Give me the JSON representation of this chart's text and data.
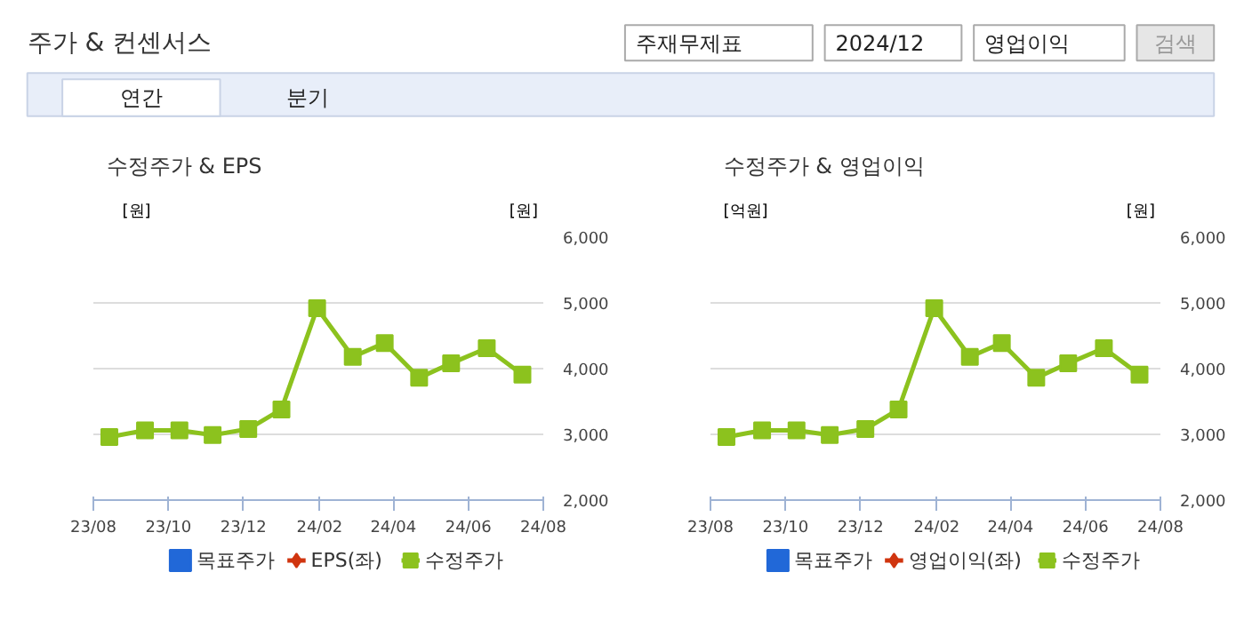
{
  "chart_data": [
    {
      "type": "other",
      "title": "주가 & 컨센서스",
      "annotations": [
        "주재무제표",
        "2024/12",
        "영업이익",
        "검색",
        "연간",
        "분기"
      ]
    },
    {
      "type": "line",
      "title": "수정주가 & EPS",
      "ylabel": "[원]",
      "annotations": [
        "[원]"
      ],
      "x": [
        "2023-08-14",
        "2023-09-12",
        "2023-10-10",
        "2023-11-06",
        "2023-12-05",
        "2024-01-01",
        "2024-01-30",
        "2024-02-28",
        "2024-03-25",
        "2024-04-22",
        "2024-05-18",
        "2024-06-16",
        "2024-07-15"
      ],
      "xlim": [
        "2023-08",
        "2024-08"
      ],
      "xticks": [
        {
          "value": "2023-08",
          "label": "23/08"
        },
        {
          "value": "2023-10",
          "label": "23/10"
        },
        {
          "value": "2023-12",
          "label": "23/12"
        },
        {
          "value": "2024-02",
          "label": "24/02"
        },
        {
          "value": "2024-04",
          "label": "24/04"
        },
        {
          "value": "2024-06",
          "label": "24/06"
        },
        {
          "value": "2024-08",
          "label": "24/08"
        }
      ],
      "ylim": [
        2000,
        6000
      ],
      "yticks": [
        {
          "value": 2000,
          "label": "2,000"
        },
        {
          "value": 3000,
          "label": "3,000"
        },
        {
          "value": 4000,
          "label": "4,000"
        },
        {
          "value": 5000,
          "label": "5,000"
        },
        {
          "value": 6000,
          "label": "6,000"
        }
      ],
      "grid": "y",
      "legend": "bottom",
      "series": [
        {
          "name": "목표주가",
          "type": "bar",
          "color": "#2168d8",
          "values": [
            null,
            null,
            null,
            null,
            null,
            null,
            null,
            null,
            null,
            null,
            null,
            null,
            null
          ]
        },
        {
          "name": "EPS(좌)",
          "type": "line",
          "marker": "diamond",
          "color": "#d0350f",
          "values": [
            null,
            null,
            null,
            null,
            null,
            null,
            null,
            null,
            null,
            null,
            null,
            null,
            null
          ]
        },
        {
          "name": "수정주가",
          "type": "line",
          "marker": "square",
          "color": "#8cc21e",
          "values": [
            2960,
            3060,
            3060,
            2990,
            3080,
            3380,
            4920,
            4180,
            4390,
            3860,
            4080,
            4310,
            3910
          ]
        }
      ]
    },
    {
      "type": "line",
      "title": "수정주가 & 영업이익",
      "ylabel": "[원]",
      "annotations": [
        "[억원]"
      ],
      "x": [
        "2023-08-14",
        "2023-09-12",
        "2023-10-10",
        "2023-11-06",
        "2023-12-05",
        "2024-01-01",
        "2024-01-30",
        "2024-02-28",
        "2024-03-25",
        "2024-04-22",
        "2024-05-18",
        "2024-06-16",
        "2024-07-15"
      ],
      "xlim": [
        "2023-08",
        "2024-08"
      ],
      "xticks": [
        {
          "value": "2023-08",
          "label": "23/08"
        },
        {
          "value": "2023-10",
          "label": "23/10"
        },
        {
          "value": "2023-12",
          "label": "23/12"
        },
        {
          "value": "2024-02",
          "label": "24/02"
        },
        {
          "value": "2024-04",
          "label": "24/04"
        },
        {
          "value": "2024-06",
          "label": "24/06"
        },
        {
          "value": "2024-08",
          "label": "24/08"
        }
      ],
      "ylim": [
        2000,
        6000
      ],
      "yticks": [
        {
          "value": 2000,
          "label": "2,000"
        },
        {
          "value": 3000,
          "label": "3,000"
        },
        {
          "value": 4000,
          "label": "4,000"
        },
        {
          "value": 5000,
          "label": "5,000"
        },
        {
          "value": 6000,
          "label": "6,000"
        }
      ],
      "grid": "y",
      "legend": "bottom",
      "series": [
        {
          "name": "목표주가",
          "type": "bar",
          "color": "#2168d8",
          "values": [
            null,
            null,
            null,
            null,
            null,
            null,
            null,
            null,
            null,
            null,
            null,
            null,
            null
          ]
        },
        {
          "name": "영업이익(좌)",
          "type": "line",
          "marker": "diamond",
          "color": "#d0350f",
          "values": [
            null,
            null,
            null,
            null,
            null,
            null,
            null,
            null,
            null,
            null,
            null,
            null,
            null
          ]
        },
        {
          "name": "수정주가",
          "type": "line",
          "marker": "square",
          "color": "#8cc21e",
          "values": [
            2960,
            3060,
            3060,
            2990,
            3080,
            3380,
            4920,
            4180,
            4390,
            3860,
            4080,
            4310,
            3910
          ]
        }
      ]
    }
  ]
}
